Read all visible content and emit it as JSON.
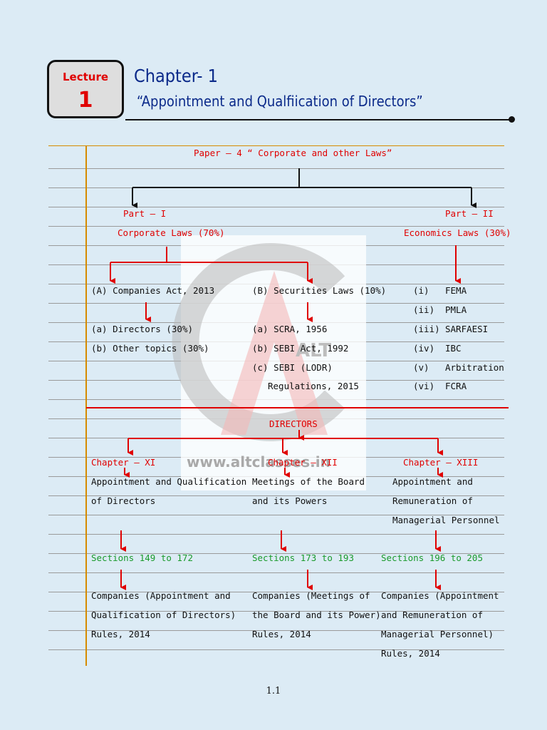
{
  "header": {
    "lecture_label": "Lecture",
    "lecture_number": "1",
    "chapter_title": "Chapter- 1",
    "chapter_subtitle": "“Appointment and Qualfiication of Directors”"
  },
  "paper_title": "Paper – 4 “ Corporate and other Laws”",
  "part1": {
    "label": "Part – I",
    "name": "Corporate Laws (70%)",
    "companies_act": "(A) Companies Act, 2013",
    "companies_items": [
      "(a) Directors (30%)",
      "(b) Other topics (30%)"
    ],
    "securities": "(B) Securities Laws (10%)",
    "securities_items": [
      "(a) SCRA, 1956",
      "(b) SEBI Act, 1992",
      "(c) SEBI (LODR)",
      "Regulations, 2015"
    ]
  },
  "part2": {
    "label": "Part – II",
    "name": "Economics Laws (30%)",
    "items": [
      {
        "num": "(i)",
        "name": "FEMA"
      },
      {
        "num": "(ii)",
        "name": "PMLA"
      },
      {
        "num": "(iii)",
        "name": "SARFAESI"
      },
      {
        "num": "(iv)",
        "name": "IBC"
      },
      {
        "num": "(v)",
        "name": "Arbitration"
      },
      {
        "num": "(vi)",
        "name": "FCRA"
      }
    ]
  },
  "directors": {
    "title": "DIRECTORS",
    "chapters": [
      {
        "chapter": "Chapter – XI",
        "desc": [
          "Appointment and Qualification",
          "of Directors"
        ],
        "sections": "Sections 149 to 172",
        "rules": [
          "Companies (Appointment and",
          "Qualification of Directors)",
          "Rules, 2014"
        ]
      },
      {
        "chapter": "Chapter – XII",
        "desc": [
          "Meetings of the Board",
          "and its Powers"
        ],
        "sections": "Sections 173 to 193",
        "rules": [
          "Companies (Meetings of",
          "the Board and its Power)",
          "Rules, 2014"
        ]
      },
      {
        "chapter": "Chapter – XIII",
        "desc": [
          "Appointment and",
          "Remuneration of",
          "Managerial Personnel"
        ],
        "sections": "Sections 196 to 205",
        "rules": [
          "Companies (Appointment",
          "and Remuneration of",
          "Managerial Personnel)",
          "Rules, 2014"
        ]
      }
    ]
  },
  "watermark": {
    "text": "www.altclasses.in",
    "logo_text": "ALT"
  },
  "page_number": "1.1",
  "colors": {
    "red": "#e00000",
    "green": "#1a9a2c",
    "blue": "#0b2a8a",
    "background": "#dcebf5"
  }
}
